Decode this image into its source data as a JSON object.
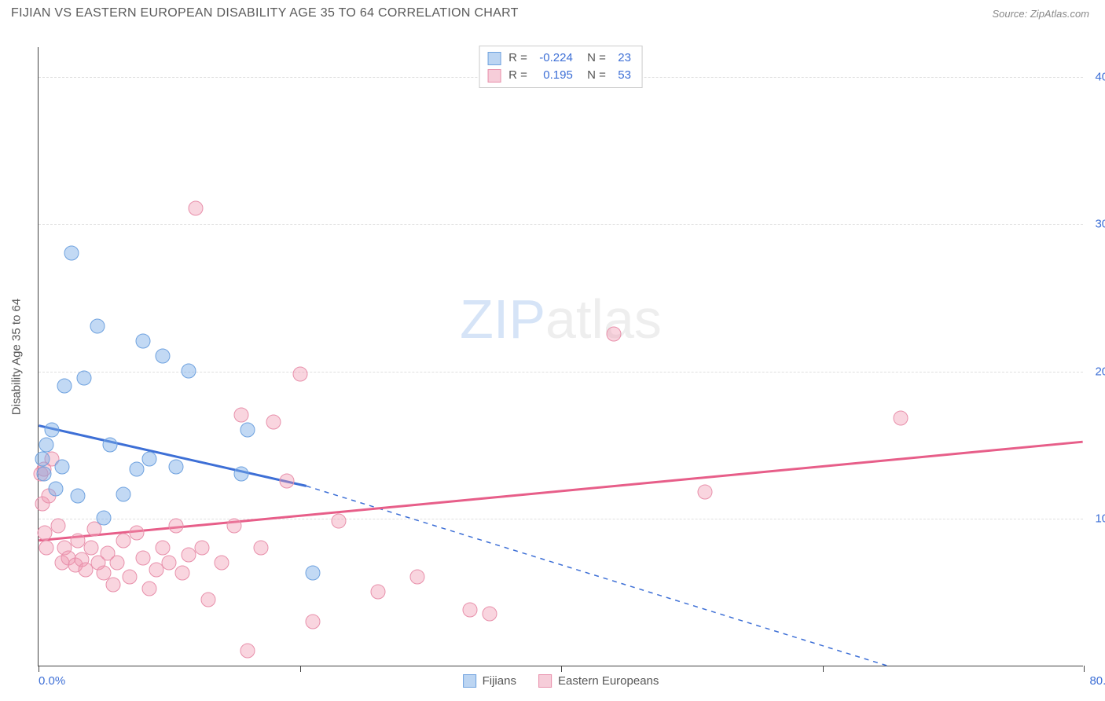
{
  "title": "FIJIAN VS EASTERN EUROPEAN DISABILITY AGE 35 TO 64 CORRELATION CHART",
  "source": "Source: ZipAtlas.com",
  "ylabel": "Disability Age 35 to 64",
  "watermark": {
    "zip": "ZIP",
    "atlas": "atlas"
  },
  "chart": {
    "xlim": [
      0,
      80
    ],
    "ylim": [
      0,
      42
    ],
    "yticks": [
      10,
      20,
      30,
      40
    ],
    "ytick_labels": [
      "10.0%",
      "20.0%",
      "30.0%",
      "40.0%"
    ],
    "xticks": [
      0,
      20,
      40,
      60,
      80
    ],
    "xtick_labels_visible": {
      "0": "0.0%",
      "80": "80.0%"
    },
    "grid_color": "#e0e0e0",
    "background": "#ffffff",
    "marker_radius": 9.5,
    "series": {
      "fijians": {
        "label": "Fijians",
        "fill": "rgba(120,170,230,0.45)",
        "stroke": "#6fa2df",
        "legend_fill": "#bcd5f2",
        "legend_border": "#6fa2df",
        "R": "-0.224",
        "N": "23",
        "trend": {
          "x1": 0,
          "y1": 16.3,
          "x2_solid": 20.5,
          "y2_solid": 12.2,
          "x2_dash": 65,
          "y2_dash": 0,
          "color": "#3d6fd6",
          "width": 3
        },
        "points": [
          [
            0.3,
            14.0
          ],
          [
            0.4,
            13.0
          ],
          [
            0.6,
            15.0
          ],
          [
            1.0,
            16.0
          ],
          [
            1.3,
            12.0
          ],
          [
            1.8,
            13.5
          ],
          [
            2.0,
            19.0
          ],
          [
            2.5,
            28.0
          ],
          [
            3.0,
            11.5
          ],
          [
            3.5,
            19.5
          ],
          [
            4.5,
            23.0
          ],
          [
            5.0,
            10.0
          ],
          [
            5.5,
            15.0
          ],
          [
            6.5,
            11.6
          ],
          [
            7.5,
            13.3
          ],
          [
            8.0,
            22.0
          ],
          [
            8.5,
            14.0
          ],
          [
            9.5,
            21.0
          ],
          [
            10.5,
            13.5
          ],
          [
            11.5,
            20.0
          ],
          [
            15.5,
            13.0
          ],
          [
            16.0,
            16.0
          ],
          [
            21.0,
            6.3
          ]
        ]
      },
      "eastern_europeans": {
        "label": "Eastern Europeans",
        "fill": "rgba(240,150,175,0.40)",
        "stroke": "#e890ab",
        "legend_fill": "#f6cdd9",
        "legend_border": "#e890ab",
        "R": "0.195",
        "N": "53",
        "trend": {
          "x1": 0,
          "y1": 8.5,
          "x2_solid": 80,
          "y2_solid": 15.2,
          "color": "#e75e89",
          "width": 3
        },
        "points": [
          [
            0.2,
            13.0
          ],
          [
            0.3,
            11.0
          ],
          [
            0.4,
            13.3
          ],
          [
            0.5,
            9.0
          ],
          [
            0.6,
            8.0
          ],
          [
            0.8,
            11.5
          ],
          [
            1.0,
            14.0
          ],
          [
            1.5,
            9.5
          ],
          [
            1.8,
            7.0
          ],
          [
            2.0,
            8.0
          ],
          [
            2.3,
            7.3
          ],
          [
            2.8,
            6.8
          ],
          [
            3.0,
            8.5
          ],
          [
            3.3,
            7.2
          ],
          [
            3.6,
            6.5
          ],
          [
            4.0,
            8.0
          ],
          [
            4.3,
            9.3
          ],
          [
            4.6,
            7.0
          ],
          [
            5.0,
            6.3
          ],
          [
            5.3,
            7.6
          ],
          [
            5.7,
            5.5
          ],
          [
            6.0,
            7.0
          ],
          [
            6.5,
            8.5
          ],
          [
            7.0,
            6.0
          ],
          [
            7.5,
            9.0
          ],
          [
            8.0,
            7.3
          ],
          [
            8.5,
            5.2
          ],
          [
            9.0,
            6.5
          ],
          [
            9.5,
            8.0
          ],
          [
            10.0,
            7.0
          ],
          [
            10.5,
            9.5
          ],
          [
            11.0,
            6.3
          ],
          [
            11.5,
            7.5
          ],
          [
            12.0,
            31.0
          ],
          [
            12.5,
            8.0
          ],
          [
            13.0,
            4.5
          ],
          [
            14.0,
            7.0
          ],
          [
            15.0,
            9.5
          ],
          [
            15.5,
            17.0
          ],
          [
            16.0,
            1.0
          ],
          [
            17.0,
            8.0
          ],
          [
            18.0,
            16.5
          ],
          [
            19.0,
            12.5
          ],
          [
            20.0,
            19.8
          ],
          [
            21.0,
            3.0
          ],
          [
            23.0,
            9.8
          ],
          [
            26.0,
            5.0
          ],
          [
            29.0,
            6.0
          ],
          [
            33.0,
            3.8
          ],
          [
            34.5,
            3.5
          ],
          [
            44.0,
            22.5
          ],
          [
            51.0,
            11.8
          ],
          [
            66.0,
            16.8
          ]
        ]
      }
    }
  }
}
